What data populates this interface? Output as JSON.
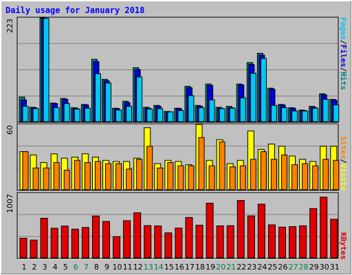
{
  "title": "Daily usage for January 2018",
  "colors": {
    "background": "#c0c0c0",
    "pages": "#00c8f0",
    "files": "#0000d8",
    "hits": "#008080",
    "visits": "#ffff00",
    "sites": "#ff8000",
    "kbytes": "#e00000",
    "weekend_label": "#008040",
    "title": "#0000ff"
  },
  "chart_data": [
    {
      "type": "bar",
      "panel": "hits-files-pages",
      "ymax_label": "223",
      "ylim": [
        0,
        223
      ],
      "side_label_parts": [
        "Pages",
        "/",
        "Files",
        "/",
        "Hits"
      ],
      "categories": [
        "1",
        "2",
        "3",
        "4",
        "5",
        "6",
        "7",
        "8",
        "9",
        "10",
        "11",
        "12",
        "13",
        "14",
        "15",
        "16",
        "17",
        "18",
        "19",
        "20",
        "21",
        "22",
        "23",
        "24",
        "25",
        "26",
        "27",
        "28",
        "29",
        "30",
        "31"
      ],
      "weekend_days": [
        "6",
        "7",
        "13",
        "14",
        "20",
        "21",
        "27",
        "28"
      ],
      "series": [
        {
          "name": "Hits",
          "values": [
            53,
            31,
            223,
            40,
            50,
            30,
            37,
            134,
            91,
            29,
            44,
            116,
            31,
            35,
            22,
            29,
            76,
            35,
            81,
            31,
            33,
            81,
            127,
            147,
            72,
            37,
            30,
            25,
            33,
            60,
            48
          ]
        },
        {
          "name": "Files",
          "values": [
            47,
            30,
            222,
            39,
            48,
            29,
            36,
            129,
            88,
            28,
            41,
            112,
            29,
            33,
            21,
            28,
            73,
            33,
            78,
            29,
            30,
            79,
            123,
            143,
            70,
            36,
            29,
            24,
            31,
            58,
            46
          ]
        },
        {
          "name": "Pages",
          "values": [
            33,
            28,
            222,
            30,
            39,
            27,
            29,
            103,
            83,
            25,
            33,
            96,
            27,
            28,
            21,
            24,
            56,
            30,
            47,
            28,
            29,
            51,
            104,
            136,
            35,
            30,
            23,
            23,
            29,
            48,
            36
          ]
        }
      ]
    },
    {
      "type": "bar",
      "panel": "visits-sites",
      "ymax_label": "60",
      "ylim": [
        0,
        60
      ],
      "side_label_parts": [
        "Sites",
        "/",
        "Visits"
      ],
      "series": [
        {
          "name": "Visits",
          "values": [
            35,
            32,
            25,
            33,
            29,
            30,
            33,
            30,
            27,
            26,
            26,
            29,
            57,
            24,
            27,
            26,
            23,
            60,
            27,
            46,
            24,
            27,
            54,
            37,
            42,
            40,
            31,
            28,
            26,
            40,
            40
          ]
        },
        {
          "name": "Sites",
          "values": [
            35,
            20,
            20,
            25,
            18,
            27,
            25,
            26,
            24,
            24,
            19,
            28,
            40,
            20,
            25,
            22,
            22,
            48,
            22,
            44,
            21,
            22,
            28,
            35,
            28,
            32,
            23,
            24,
            22,
            28,
            27
          ]
        }
      ]
    },
    {
      "type": "bar",
      "panel": "kbytes",
      "ymax_label": "1007",
      "ylim": [
        0,
        1007
      ],
      "side_label": "KBytes",
      "series": [
        {
          "name": "KBytes",
          "values": [
            305,
            277,
            617,
            461,
            495,
            447,
            473,
            652,
            567,
            329,
            579,
            702,
            502,
            497,
            389,
            463,
            628,
            509,
            852,
            498,
            501,
            894,
            653,
            836,
            514,
            478,
            486,
            499,
            768,
            946,
            601
          ]
        }
      ]
    }
  ]
}
